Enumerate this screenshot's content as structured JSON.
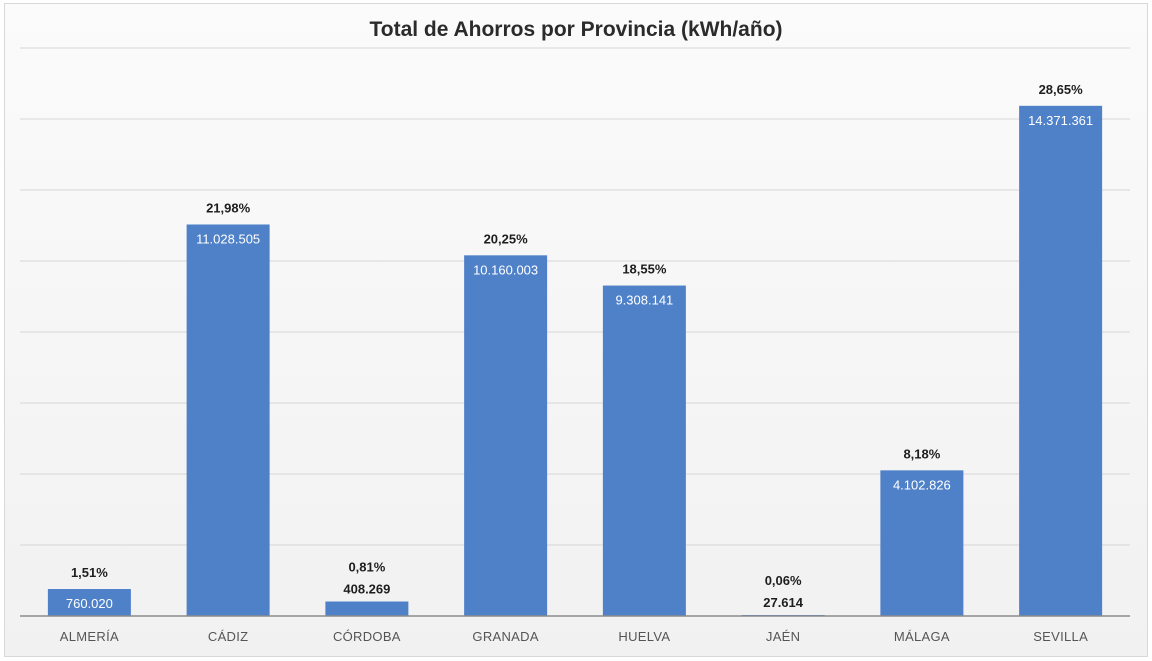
{
  "chart_data": {
    "type": "bar",
    "title": "Total de Ahorros por Provincia (kWh/año)",
    "categories": [
      "ALMERÍA",
      "CÁDIZ",
      "CÓRDOBA",
      "GRANADA",
      "HUELVA",
      "JAÉN",
      "MÁLAGA",
      "SEVILLA"
    ],
    "values": [
      760020,
      11028505,
      408269,
      10160003,
      9308141,
      27614,
      4102826,
      14371361
    ],
    "value_labels": [
      "760.020",
      "11.028.505",
      "408.269",
      "10.160.003",
      "9.308.141",
      "27.614",
      "4.102.826",
      "14.371.361"
    ],
    "percent_labels": [
      "1,51%",
      "21,98%",
      "0,81%",
      "20,25%",
      "18,55%",
      "0,06%",
      "8,18%",
      "28,65%"
    ],
    "ylim": [
      0,
      16000000
    ],
    "grid": true,
    "legend": "none",
    "bar_color": "#4f81c9"
  }
}
